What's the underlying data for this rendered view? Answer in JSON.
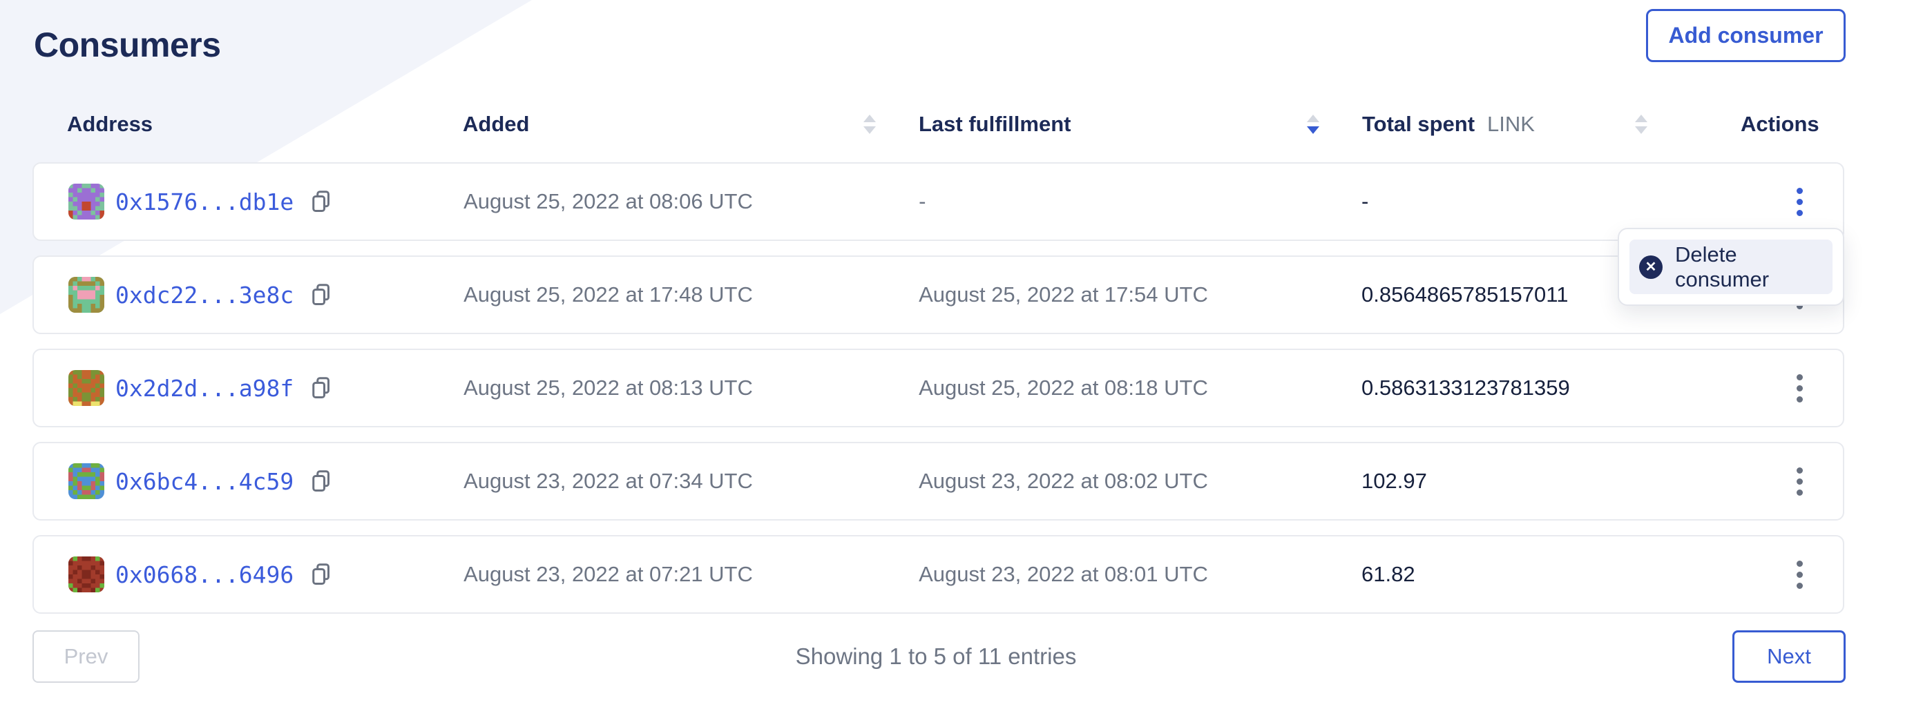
{
  "page": {
    "title": "Consumers"
  },
  "toolbar": {
    "add_consumer_label": "Add consumer"
  },
  "table": {
    "columns": [
      {
        "label": "Address",
        "sortable": false,
        "sort": "none"
      },
      {
        "label": "Added",
        "sortable": true,
        "sort": "none"
      },
      {
        "label": "Last fulfillment",
        "sortable": true,
        "sort": "desc"
      },
      {
        "label": "Total spent",
        "unit": "LINK",
        "sortable": true,
        "sort": "none"
      },
      {
        "label": "Actions",
        "sortable": false,
        "sort": "none"
      }
    ],
    "rows": [
      {
        "address": "0x1576...db1e",
        "added": "August 25, 2022 at 08:06 UTC",
        "last_fulfillment": "-",
        "total_spent": "-",
        "menu_open": true,
        "identicon": {
          "colors": [
            "#7dc29e",
            "#9b6fd4",
            "#c2472e"
          ],
          "grid": [
            "01100110",
            "11011011",
            "01111110",
            "10111101",
            "01122110",
            "00122100",
            "21011012",
            "20111102"
          ]
        }
      },
      {
        "address": "0xdc22...3e8c",
        "added": "August 25, 2022 at 17:48 UTC",
        "last_fulfillment": "August 25, 2022 at 17:54 UTC",
        "total_spent": "0.8564865785157011",
        "menu_open": false,
        "identicon": {
          "colors": [
            "#6fc393",
            "#9d8d3f",
            "#f0a0b6"
          ],
          "grid": [
            "11022011",
            "10111101",
            "02000020",
            "00222200",
            "10222201",
            "10000001",
            "10100101",
            "11100111"
          ]
        }
      },
      {
        "address": "0x2d2d...a98f",
        "added": "August 25, 2022 at 08:13 UTC",
        "last_fulfillment": "August 25, 2022 at 08:18 UTC",
        "total_spent": "0.5863133123781359",
        "menu_open": false,
        "identicon": {
          "colors": [
            "#7b9336",
            "#c4662f",
            "#ece26d"
          ],
          "grid": [
            "10011001",
            "01011010",
            "01100110",
            "10111101",
            "01011010",
            "01100110",
            "10100101",
            "12211221"
          ]
        }
      },
      {
        "address": "0x6bc4...4c59",
        "added": "August 23, 2022 at 07:34 UTC",
        "last_fulfillment": "August 23, 2022 at 08:02 UTC",
        "total_spent": "102.97",
        "menu_open": false,
        "identicon": {
          "colors": [
            "#4f90d6",
            "#6fb03f",
            "#c75f66"
          ],
          "grid": [
            "01100110",
            "10022001",
            "20111102",
            "21000012",
            "01200210",
            "10211201",
            "01022010",
            "00111100"
          ]
        }
      },
      {
        "address": "0x0668...6496",
        "added": "August 23, 2022 at 07:21 UTC",
        "last_fulfillment": "August 23, 2022 at 08:01 UTC",
        "total_spent": "61.82",
        "menu_open": false,
        "identicon": {
          "colors": [
            "#a23b2b",
            "#7e281d",
            "#69b43c"
          ],
          "grid": [
            "02011020",
            "10000001",
            "00100100",
            "01011010",
            "10011001",
            "00100100",
            "20011002",
            "02100120"
          ]
        }
      }
    ]
  },
  "menu": {
    "delete_label": "Delete consumer",
    "icon": "x-circle-icon"
  },
  "pagination": {
    "prev_label": "Prev",
    "summary": "Showing 1 to 5 of 11 entries",
    "next_label": "Next"
  },
  "colors": {
    "accent_blue": "#375bd2",
    "link_blue": "#3b5bdb",
    "heading_navy": "#1c2a57",
    "value_navy": "#16203c",
    "muted_gray": "#6d7584",
    "band_lavender": "#f2f4fa"
  }
}
